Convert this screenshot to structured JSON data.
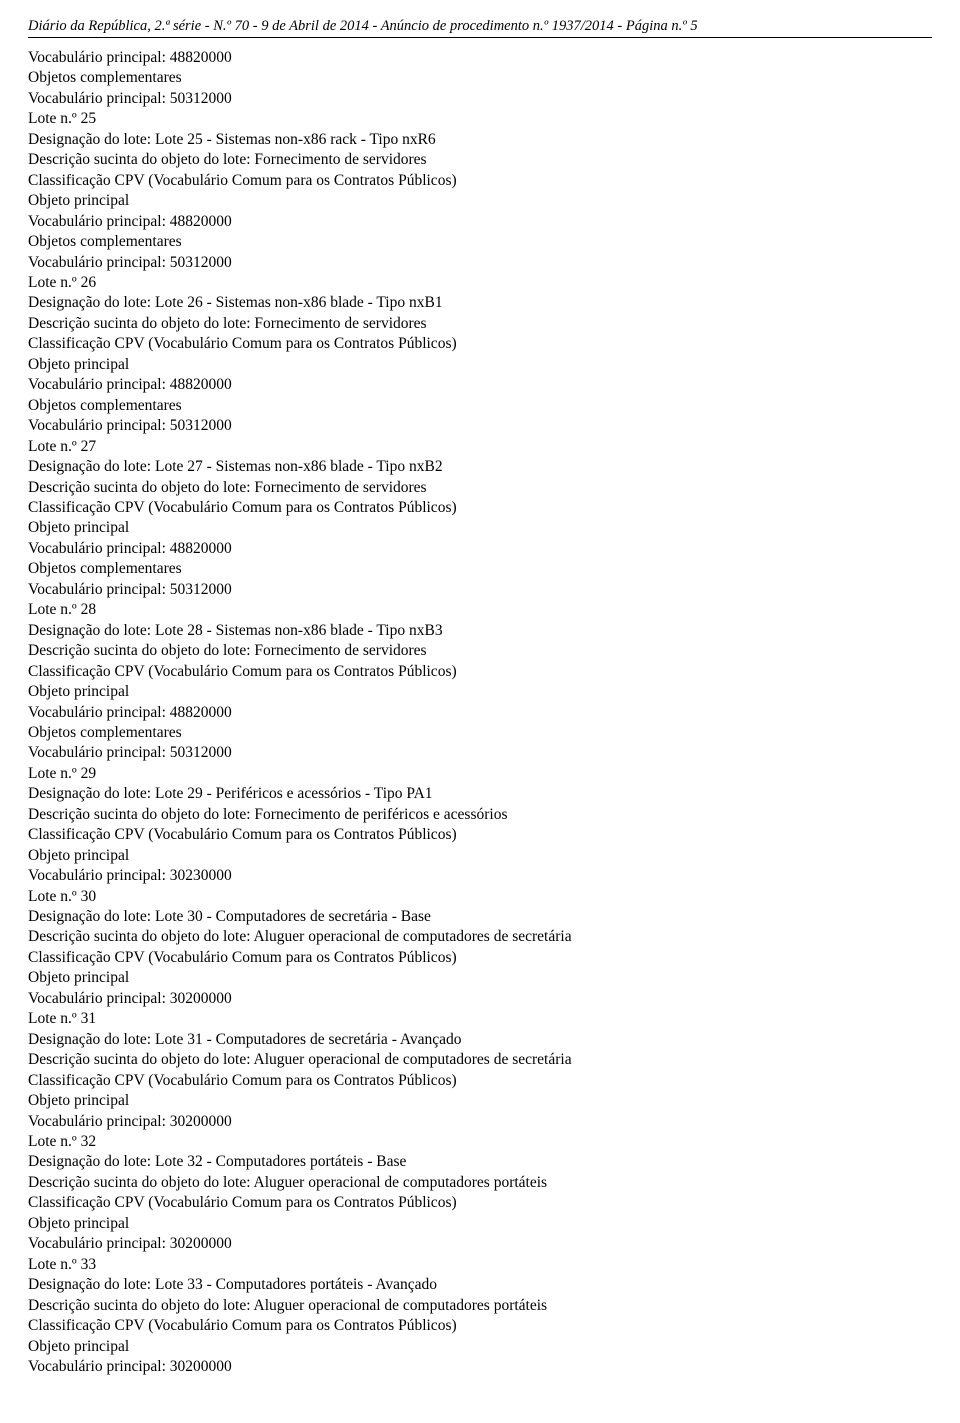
{
  "header": {
    "text": "Diário da República, 2.ª série - N.º 70 - 9 de Abril de 2014  -  Anúncio de procedimento n.º 1937/2014 -  Página n.º 5"
  },
  "labels": {
    "vocab_principal_prefix": "Vocabulário principal: ",
    "objetos_complementares": "Objetos complementares",
    "lote_prefix": "Lote n.º ",
    "designacao_prefix": "Designação do lote: ",
    "descricao_prefix": "Descrição sucinta do objeto do lote: ",
    "classificacao": "Classificação CPV (Vocabulário Comum para os Contratos Públicos)",
    "objeto_principal": "Objeto principal"
  },
  "intro": {
    "vocab1": "48820000",
    "vocab2": "50312000"
  },
  "lotes": [
    {
      "num": "25",
      "designacao": "Lote 25 - Sistemas non-x86 rack - Tipo nxR6",
      "descricao": "Fornecimento de servidores",
      "vocab1": "48820000",
      "has_complementares": true,
      "vocab2": "50312000"
    },
    {
      "num": "26",
      "designacao": "Lote 26 - Sistemas non-x86 blade - Tipo nxB1",
      "descricao": "Fornecimento de servidores",
      "vocab1": "48820000",
      "has_complementares": true,
      "vocab2": "50312000"
    },
    {
      "num": "27",
      "designacao": "Lote 27 - Sistemas non-x86 blade - Tipo nxB2",
      "descricao": "Fornecimento de servidores",
      "vocab1": "48820000",
      "has_complementares": true,
      "vocab2": "50312000"
    },
    {
      "num": "28",
      "designacao": "Lote 28 - Sistemas non-x86 blade - Tipo nxB3",
      "descricao": "Fornecimento de servidores",
      "vocab1": "48820000",
      "has_complementares": true,
      "vocab2": "50312000"
    },
    {
      "num": "29",
      "designacao": "Lote 29 - Periféricos e acessórios - Tipo PA1",
      "descricao": "Fornecimento de periféricos e acessórios",
      "vocab1": "30230000",
      "has_complementares": false
    },
    {
      "num": "30",
      "designacao": "Lote 30 - Computadores de secretária - Base",
      "descricao": "Aluguer operacional de computadores de secretária",
      "vocab1": "30200000",
      "has_complementares": false
    },
    {
      "num": "31",
      "designacao": "Lote 31 - Computadores de secretária - Avançado",
      "descricao": "Aluguer operacional de computadores de secretária",
      "vocab1": "30200000",
      "has_complementares": false
    },
    {
      "num": "32",
      "designacao": "Lote 32 - Computadores portáteis - Base",
      "descricao": "Aluguer operacional de computadores portáteis",
      "vocab1": "30200000",
      "has_complementares": false
    },
    {
      "num": "33",
      "designacao": "Lote 33 - Computadores portáteis - Avançado",
      "descricao": "Aluguer operacional de computadores portáteis",
      "vocab1": "30200000",
      "has_complementares": false
    }
  ]
}
